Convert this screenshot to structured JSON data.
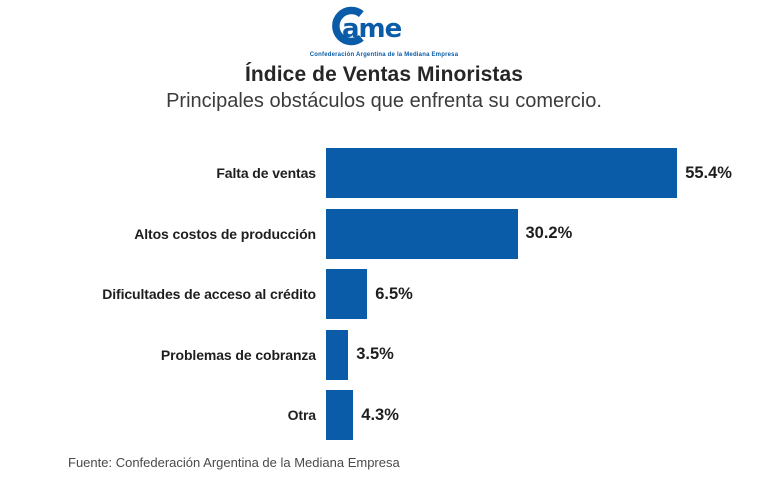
{
  "logo": {
    "wordmark_letters": "ame",
    "tagline": "Confederación Argentina de la Mediana Empresa",
    "brand_color": "#0b5ca8"
  },
  "header": {
    "title": "Índice de Ventas Minoristas",
    "subtitle": "Principales obstáculos que enfrenta su comercio."
  },
  "chart_data": {
    "type": "bar",
    "orientation": "horizontal",
    "title": "Índice de Ventas Minoristas",
    "subtitle": "Principales obstáculos que enfrenta su comercio.",
    "categories": [
      "Falta de ventas",
      "Altos costos de producción",
      "Dificultades de acceso al crédito",
      "Problemas de cobranza",
      "Otra"
    ],
    "values": [
      55.4,
      30.2,
      6.5,
      3.5,
      4.3
    ],
    "value_labels": [
      "55.4%",
      "30.2%",
      "6.5%",
      "3.5%",
      "4.3%"
    ],
    "unit": "%",
    "xlim": [
      0,
      60
    ],
    "bar_color": "#0b5ca8",
    "grid": false,
    "legend": false,
    "value_label_position": "right-of-bar"
  },
  "footer": {
    "source_label": "Fuente: Confederación Argentina de la Mediana Empresa"
  }
}
